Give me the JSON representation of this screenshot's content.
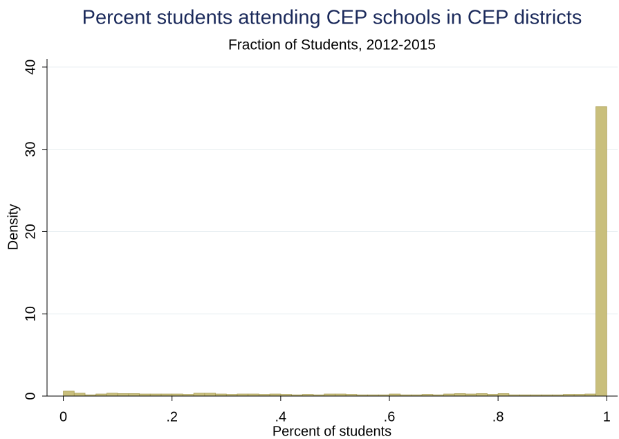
{
  "chart_data": {
    "type": "histogram",
    "title": "Percent students attending CEP schools in CEP districts",
    "subtitle": "Fraction of Students, 2012-2015",
    "x_label": "Percent of students",
    "y_label": "Density",
    "bins": [
      0,
      0.02,
      0.04,
      0.06,
      0.08,
      0.1,
      0.12,
      0.14,
      0.16,
      0.18,
      0.2,
      0.22,
      0.24,
      0.26,
      0.28,
      0.3,
      0.32,
      0.34,
      0.36,
      0.38,
      0.4,
      0.42,
      0.44,
      0.46,
      0.48,
      0.5,
      0.52,
      0.54,
      0.56,
      0.58,
      0.6,
      0.62,
      0.64,
      0.66,
      0.68,
      0.7,
      0.72,
      0.74,
      0.76,
      0.78,
      0.8,
      0.82,
      0.84,
      0.86,
      0.88,
      0.9,
      0.92,
      0.94,
      0.96,
      0.98,
      1
    ],
    "values": [
      0.6,
      0.35,
      0.15,
      0.25,
      0.35,
      0.3,
      0.3,
      0.25,
      0.25,
      0.25,
      0.25,
      0.2,
      0.35,
      0.35,
      0.25,
      0.2,
      0.25,
      0.25,
      0.2,
      0.25,
      0.2,
      0.15,
      0.2,
      0.15,
      0.25,
      0.25,
      0.2,
      0.15,
      0.15,
      0.15,
      0.25,
      0.15,
      0.15,
      0.2,
      0.15,
      0.25,
      0.3,
      0.25,
      0.3,
      0.2,
      0.3,
      0.15,
      0.15,
      0.15,
      0.15,
      0.15,
      0.2,
      0.2,
      0.25,
      35.2
    ],
    "color": "#c9bf7c",
    "edge_color": "#a99e55",
    "xlim": [
      -0.03,
      1.02
    ],
    "ylim": [
      0,
      41
    ],
    "xticks": [
      0,
      {
        "value": 0.2,
        "label": ".2"
      },
      {
        "value": 0.4,
        "label": ".4"
      },
      {
        "value": 0.6,
        "label": ".6"
      },
      {
        "value": 0.8,
        "label": ".8"
      },
      1
    ],
    "yticks": [
      0,
      10,
      20,
      30,
      40
    ],
    "grid": true
  }
}
